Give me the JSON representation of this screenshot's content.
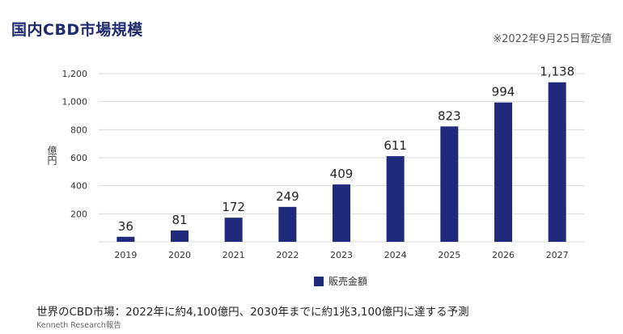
{
  "header": {
    "title": "国内CBD市場規模",
    "note": "※2022年9月25日暫定値"
  },
  "footer": {
    "main": "世界のCBD市場：2022年に約4,100億円、2030年までに約1兆3,100億円に達する予測",
    "sub": "Kenneth Research報告"
  },
  "colors": {
    "bar": "#1f2a7d",
    "grid": "#d9d9d9",
    "title": "#1f2a6e"
  },
  "chart_data": {
    "type": "bar",
    "categories": [
      "2019",
      "2020",
      "2021",
      "2022",
      "2023",
      "2024",
      "2025",
      "2026",
      "2027"
    ],
    "series": [
      {
        "name": "販売金額",
        "values": [
          36,
          81,
          172,
          249,
          409,
          611,
          823,
          994,
          1138
        ]
      }
    ],
    "data_labels": [
      "36",
      "81",
      "172",
      "249",
      "409",
      "611",
      "823",
      "994",
      "1,138"
    ],
    "ylabel": "億円",
    "xlabel": "",
    "ylim": [
      0,
      1200
    ],
    "yticks": [
      200,
      400,
      600,
      800,
      1000,
      1200
    ],
    "ytick_labels": [
      "200",
      "400",
      "600",
      "800",
      "1,000",
      "1,200"
    ],
    "grid": true,
    "legend": "bottom-center"
  }
}
